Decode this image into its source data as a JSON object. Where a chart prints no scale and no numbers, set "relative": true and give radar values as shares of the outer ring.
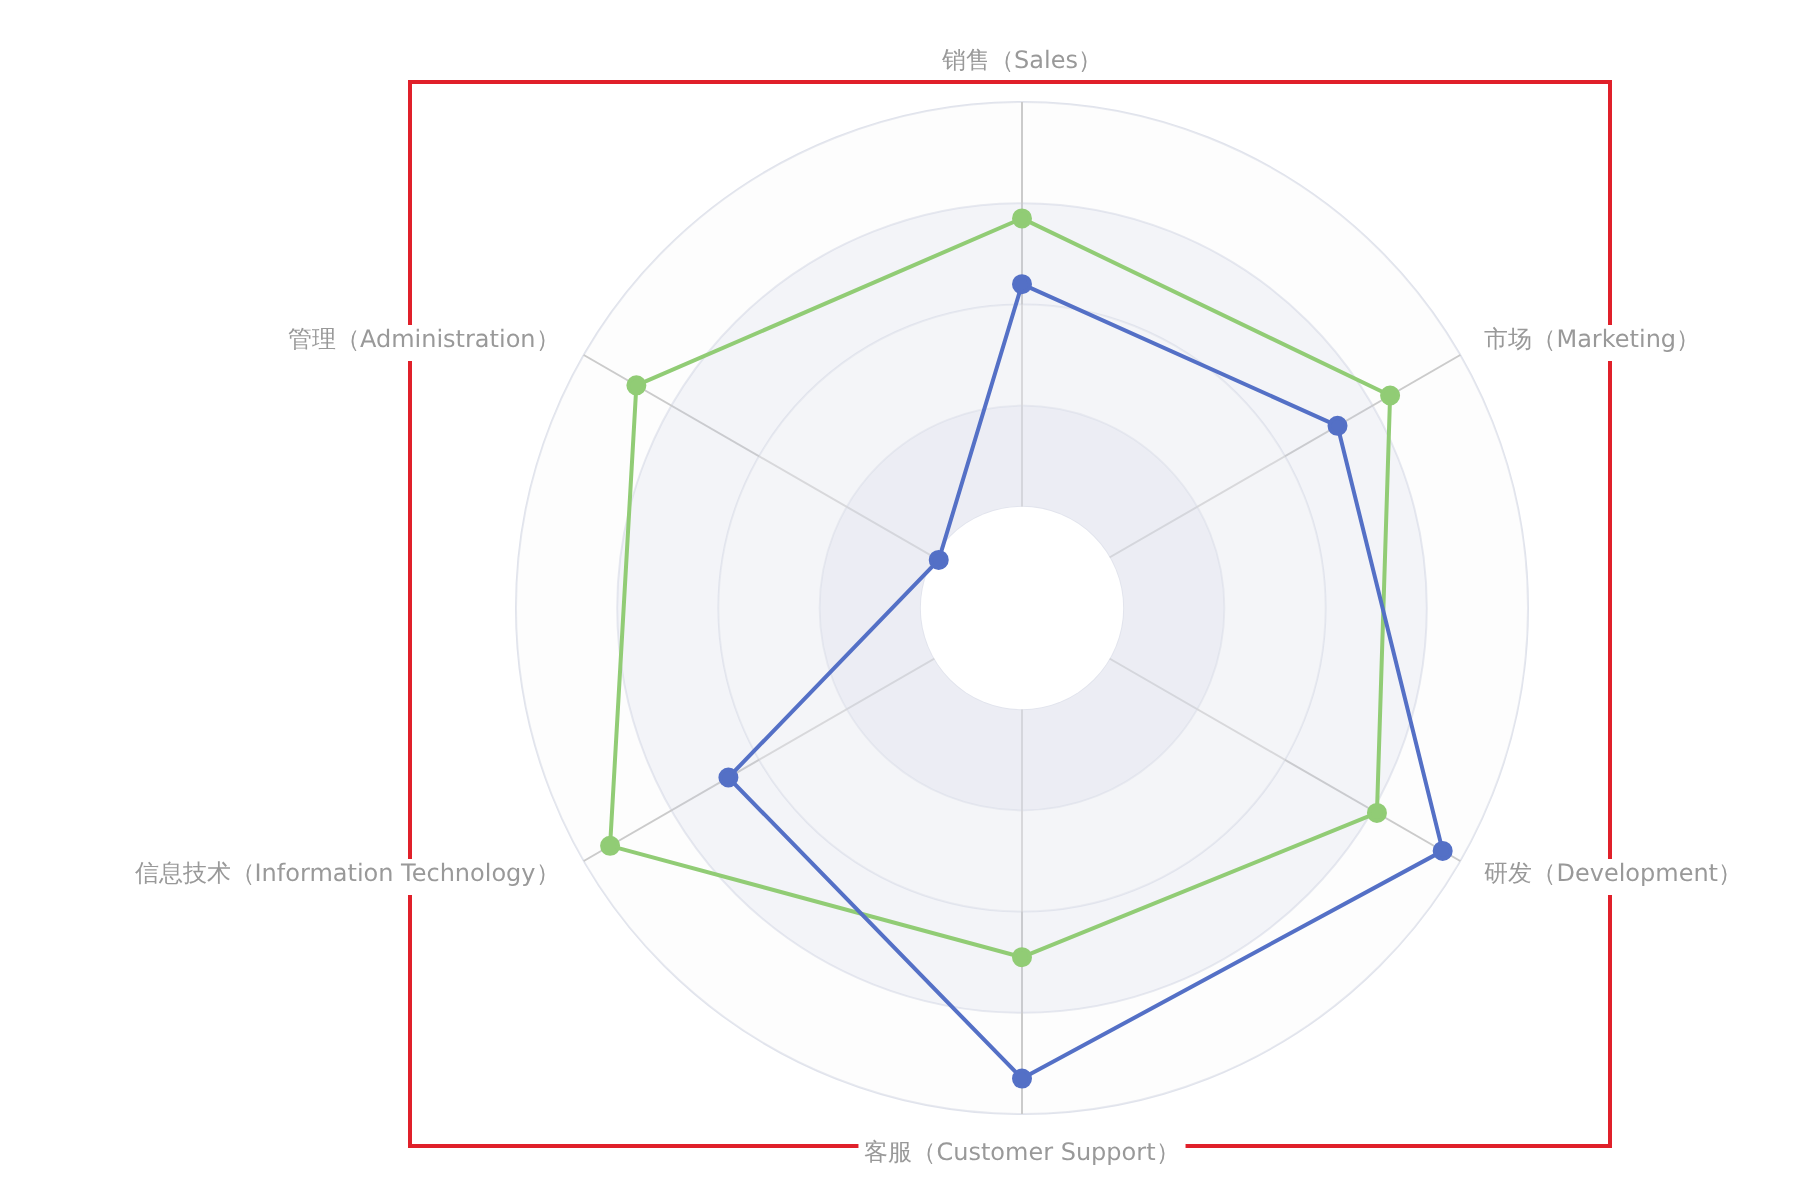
{
  "chart_data": {
    "type": "radar",
    "relative": true,
    "grid": true,
    "legend": false,
    "marker": "circle",
    "line_style": "solid",
    "categories": [
      "销售（Sales）",
      "市场（Marketing）",
      "研发（Development）",
      "客服（Customer Support）",
      "信息技术（Information Technology）",
      "管理（Administration）"
    ],
    "series": [
      {
        "color": "#5470c6",
        "values": [
          0.64,
          0.72,
          0.96,
          0.93,
          0.67,
          0.19
        ]
      },
      {
        "color": "#91cc75",
        "values": [
          0.77,
          0.84,
          0.81,
          0.69,
          0.94,
          0.88
        ]
      }
    ]
  }
}
